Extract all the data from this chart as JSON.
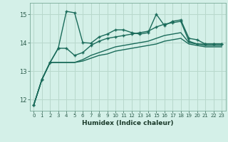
{
  "title": "",
  "xlabel": "Humidex (Indice chaleur)",
  "ylabel": "",
  "bg_color": "#d4f0e8",
  "grid_color": "#b8d8cc",
  "line_color": "#1a6b5a",
  "x": [
    0,
    1,
    2,
    3,
    4,
    5,
    6,
    7,
    8,
    9,
    10,
    11,
    12,
    13,
    14,
    15,
    16,
    17,
    18,
    19,
    20,
    21,
    22,
    23
  ],
  "series1": [
    11.8,
    12.7,
    13.3,
    13.8,
    15.1,
    15.05,
    14.0,
    13.98,
    14.2,
    14.3,
    14.45,
    14.45,
    14.35,
    14.3,
    14.35,
    15.0,
    14.6,
    14.75,
    14.8,
    14.15,
    14.1,
    13.95,
    13.95,
    13.95
  ],
  "series2": [
    11.8,
    12.7,
    13.3,
    13.8,
    13.8,
    13.55,
    13.65,
    13.9,
    14.05,
    14.15,
    14.2,
    14.25,
    14.3,
    14.35,
    14.4,
    14.55,
    14.65,
    14.7,
    14.75,
    14.05,
    13.95,
    13.95,
    13.95,
    13.95
  ],
  "series3": [
    11.8,
    12.7,
    13.3,
    13.3,
    13.3,
    13.3,
    13.4,
    13.55,
    13.65,
    13.75,
    13.85,
    13.9,
    13.95,
    14.0,
    14.05,
    14.15,
    14.25,
    14.3,
    14.35,
    14.0,
    13.95,
    13.9,
    13.9,
    13.9
  ],
  "series4": [
    11.8,
    12.7,
    13.3,
    13.3,
    13.3,
    13.3,
    13.35,
    13.45,
    13.55,
    13.6,
    13.7,
    13.75,
    13.8,
    13.85,
    13.9,
    13.95,
    14.05,
    14.1,
    14.15,
    13.95,
    13.9,
    13.85,
    13.85,
    13.85
  ],
  "ylim": [
    11.6,
    15.4
  ],
  "yticks": [
    12,
    13,
    14,
    15
  ],
  "xticks": [
    0,
    1,
    2,
    3,
    4,
    5,
    6,
    7,
    8,
    9,
    10,
    11,
    12,
    13,
    14,
    15,
    16,
    17,
    18,
    19,
    20,
    21,
    22,
    23
  ]
}
